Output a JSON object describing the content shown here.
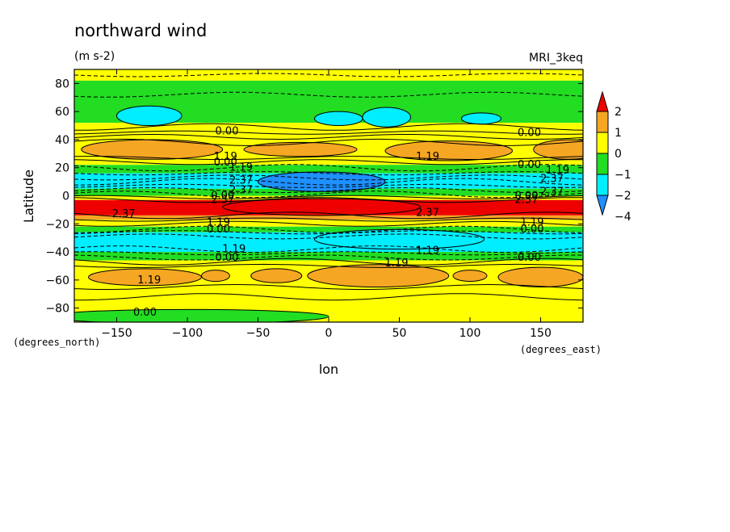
{
  "chart_data": {
    "type": "heatmap",
    "title": "northward wind",
    "units": "(m s-2)",
    "model_label": "MRI_3keq",
    "xlabel": "lon",
    "ylabel": "Latitude",
    "x_units": "(degrees_east)",
    "y_units": "(degrees_north)",
    "xlim": [
      -180,
      180
    ],
    "ylim": [
      -90,
      90
    ],
    "x_ticks": [
      -150,
      -100,
      -50,
      0,
      50,
      100,
      150
    ],
    "y_ticks": [
      80,
      60,
      40,
      20,
      0,
      -20,
      -40,
      -60,
      -80
    ],
    "colorbar": {
      "labels": [
        "2",
        "1",
        "0",
        "−1",
        "−2",
        "−4"
      ],
      "colors": [
        "#ee0000",
        "#f5a623",
        "#ffff00",
        "#22dd22",
        "#00eeff",
        "#1e90ff"
      ]
    },
    "level_colors": {
      "red": "#ee0000",
      "orange": "#f5a623",
      "yellow": "#ffff00",
      "green": "#22dd22",
      "cyan": "#00eeff",
      "blue": "#1e90ff"
    },
    "bands": [
      {
        "lat": [
          82,
          90
        ],
        "level": "yellow"
      },
      {
        "lat": [
          52,
          82
        ],
        "level": "green"
      },
      {
        "lat": [
          45,
          52
        ],
        "level": "yellow"
      },
      {
        "lat": [
          25,
          45
        ],
        "level": "yellow"
      },
      {
        "lat": [
          22,
          25
        ],
        "level": "yellow"
      },
      {
        "lat": [
          16,
          22
        ],
        "level": "green"
      },
      {
        "lat": [
          5,
          16
        ],
        "level": "cyan"
      },
      {
        "lat": [
          0,
          5
        ],
        "level": "green"
      },
      {
        "lat": [
          -3,
          0
        ],
        "level": "yellow"
      },
      {
        "lat": [
          -14,
          -3
        ],
        "level": "red"
      },
      {
        "lat": [
          -17,
          -14
        ],
        "level": "orange"
      },
      {
        "lat": [
          -22,
          -17
        ],
        "level": "yellow"
      },
      {
        "lat": [
          -26,
          -22
        ],
        "level": "green"
      },
      {
        "lat": [
          -40,
          -26
        ],
        "level": "cyan"
      },
      {
        "lat": [
          -46,
          -40
        ],
        "level": "green"
      },
      {
        "lat": [
          -90,
          -46
        ],
        "level": "yellow"
      }
    ],
    "blobs": [
      {
        "lon": -127,
        "lat": 57,
        "dlon": 23,
        "dlat": 7,
        "level": "cyan"
      },
      {
        "lon": 7,
        "lat": 55,
        "dlon": 17,
        "dlat": 5,
        "level": "cyan"
      },
      {
        "lon": 41,
        "lat": 56,
        "dlon": 17,
        "dlat": 7,
        "level": "cyan"
      },
      {
        "lon": 108,
        "lat": 55,
        "dlon": 14,
        "dlat": 4,
        "level": "cyan"
      },
      {
        "lon": -125,
        "lat": 33,
        "dlon": 50,
        "dlat": 7,
        "level": "orange"
      },
      {
        "lon": -20,
        "lat": 33,
        "dlon": 40,
        "dlat": 5,
        "level": "orange"
      },
      {
        "lon": 85,
        "lat": 32,
        "dlon": 45,
        "dlat": 7,
        "level": "orange"
      },
      {
        "lon": 170,
        "lat": 33,
        "dlon": 25,
        "dlat": 7,
        "level": "orange"
      },
      {
        "lon": -5,
        "lat": 10,
        "dlon": 45,
        "dlat": 7,
        "level": "blue"
      },
      {
        "lon": -5,
        "lat": -8,
        "dlon": 70,
        "dlat": 6,
        "level": "red"
      },
      {
        "lon": 50,
        "lat": -31,
        "dlon": 60,
        "dlat": 7,
        "level": "cyan"
      },
      {
        "lon": -130,
        "lat": -58,
        "dlon": 40,
        "dlat": 6,
        "level": "orange"
      },
      {
        "lon": -80,
        "lat": -57,
        "dlon": 10,
        "dlat": 4,
        "level": "orange"
      },
      {
        "lon": -37,
        "lat": -57,
        "dlon": 18,
        "dlat": 5,
        "level": "orange"
      },
      {
        "lon": 35,
        "lat": -57,
        "dlon": 50,
        "dlat": 8,
        "level": "orange"
      },
      {
        "lon": 100,
        "lat": -57,
        "dlon": 12,
        "dlat": 4,
        "level": "orange"
      },
      {
        "lon": 150,
        "lat": -58,
        "dlon": 30,
        "dlat": 7,
        "level": "orange"
      },
      {
        "lon": -100,
        "lat": -86,
        "dlon": 100,
        "dlat": 5,
        "level": "green"
      }
    ],
    "contour_lines": [
      {
        "lat": 86,
        "dashed": true
      },
      {
        "lat": 72,
        "dashed": true
      },
      {
        "lat": 49,
        "dashed": false
      },
      {
        "lat": 45,
        "dashed": false
      },
      {
        "lat": 42,
        "dashed": false
      },
      {
        "lat": 38,
        "dashed": false
      },
      {
        "lat": 27,
        "dashed": false
      },
      {
        "lat": 24,
        "dashed": false
      },
      {
        "lat": 20,
        "dashed": true
      },
      {
        "lat": 16,
        "dashed": true
      },
      {
        "lat": 13,
        "dashed": true
      },
      {
        "lat": 10,
        "dashed": true
      },
      {
        "lat": 7,
        "dashed": true
      },
      {
        "lat": 4,
        "dashed": true
      },
      {
        "lat": 1,
        "dashed": true
      },
      {
        "lat": -1,
        "dashed": false
      },
      {
        "lat": -3,
        "dashed": false
      },
      {
        "lat": -14,
        "dashed": false
      },
      {
        "lat": -17,
        "dashed": false
      },
      {
        "lat": -20,
        "dashed": false
      },
      {
        "lat": -24,
        "dashed": true
      },
      {
        "lat": -26,
        "dashed": true
      },
      {
        "lat": -29,
        "dashed": true
      },
      {
        "lat": -38,
        "dashed": true
      },
      {
        "lat": -41,
        "dashed": true
      },
      {
        "lat": -44,
        "dashed": true
      },
      {
        "lat": -47,
        "dashed": false
      },
      {
        "lat": -50,
        "dashed": false
      },
      {
        "lat": -65,
        "dashed": false
      },
      {
        "lat": -72,
        "dashed": false
      }
    ],
    "contour_labels": [
      {
        "text": "0.00",
        "lon": -72,
        "lat": 46
      },
      {
        "text": "0.00",
        "lon": 142,
        "lat": 45
      },
      {
        "text": "1.19",
        "lon": -73,
        "lat": 28
      },
      {
        "text": "0.00",
        "lon": -73,
        "lat": 24
      },
      {
        "text": "1.19",
        "lon": -62,
        "lat": 20
      },
      {
        "text": "2.37",
        "lon": -62,
        "lat": 11
      },
      {
        "text": "2.37",
        "lon": -62,
        "lat": 4
      },
      {
        "text": "1.19",
        "lon": 70,
        "lat": 28
      },
      {
        "text": "0.00",
        "lon": 142,
        "lat": 22
      },
      {
        "text": "1.19",
        "lon": 162,
        "lat": 18
      },
      {
        "text": "2.37",
        "lon": 158,
        "lat": 12
      },
      {
        "text": "2.37",
        "lon": 158,
        "lat": 3
      },
      {
        "text": "0.00",
        "lon": -75,
        "lat": 0
      },
      {
        "text": "2.37",
        "lon": -75,
        "lat": -3
      },
      {
        "text": "0.00",
        "lon": 140,
        "lat": 0
      },
      {
        "text": "2.37",
        "lon": 140,
        "lat": -3
      },
      {
        "text": "2.37",
        "lon": -145,
        "lat": -13
      },
      {
        "text": "2.37",
        "lon": 70,
        "lat": -12
      },
      {
        "text": "1.19",
        "lon": -78,
        "lat": -19
      },
      {
        "text": "0.00",
        "lon": -78,
        "lat": -24
      },
      {
        "text": "1.19",
        "lon": 144,
        "lat": -19
      },
      {
        "text": "0.00",
        "lon": 144,
        "lat": -24
      },
      {
        "text": "1.19",
        "lon": -67,
        "lat": -38
      },
      {
        "text": "1.19",
        "lon": 70,
        "lat": -39
      },
      {
        "text": "0.00",
        "lon": -72,
        "lat": -44
      },
      {
        "text": "0.00",
        "lon": 142,
        "lat": -44
      },
      {
        "text": "1.19",
        "lon": 48,
        "lat": -48
      },
      {
        "text": "1.19",
        "lon": -127,
        "lat": -60
      },
      {
        "text": "0.00",
        "lon": -130,
        "lat": -83
      }
    ]
  }
}
